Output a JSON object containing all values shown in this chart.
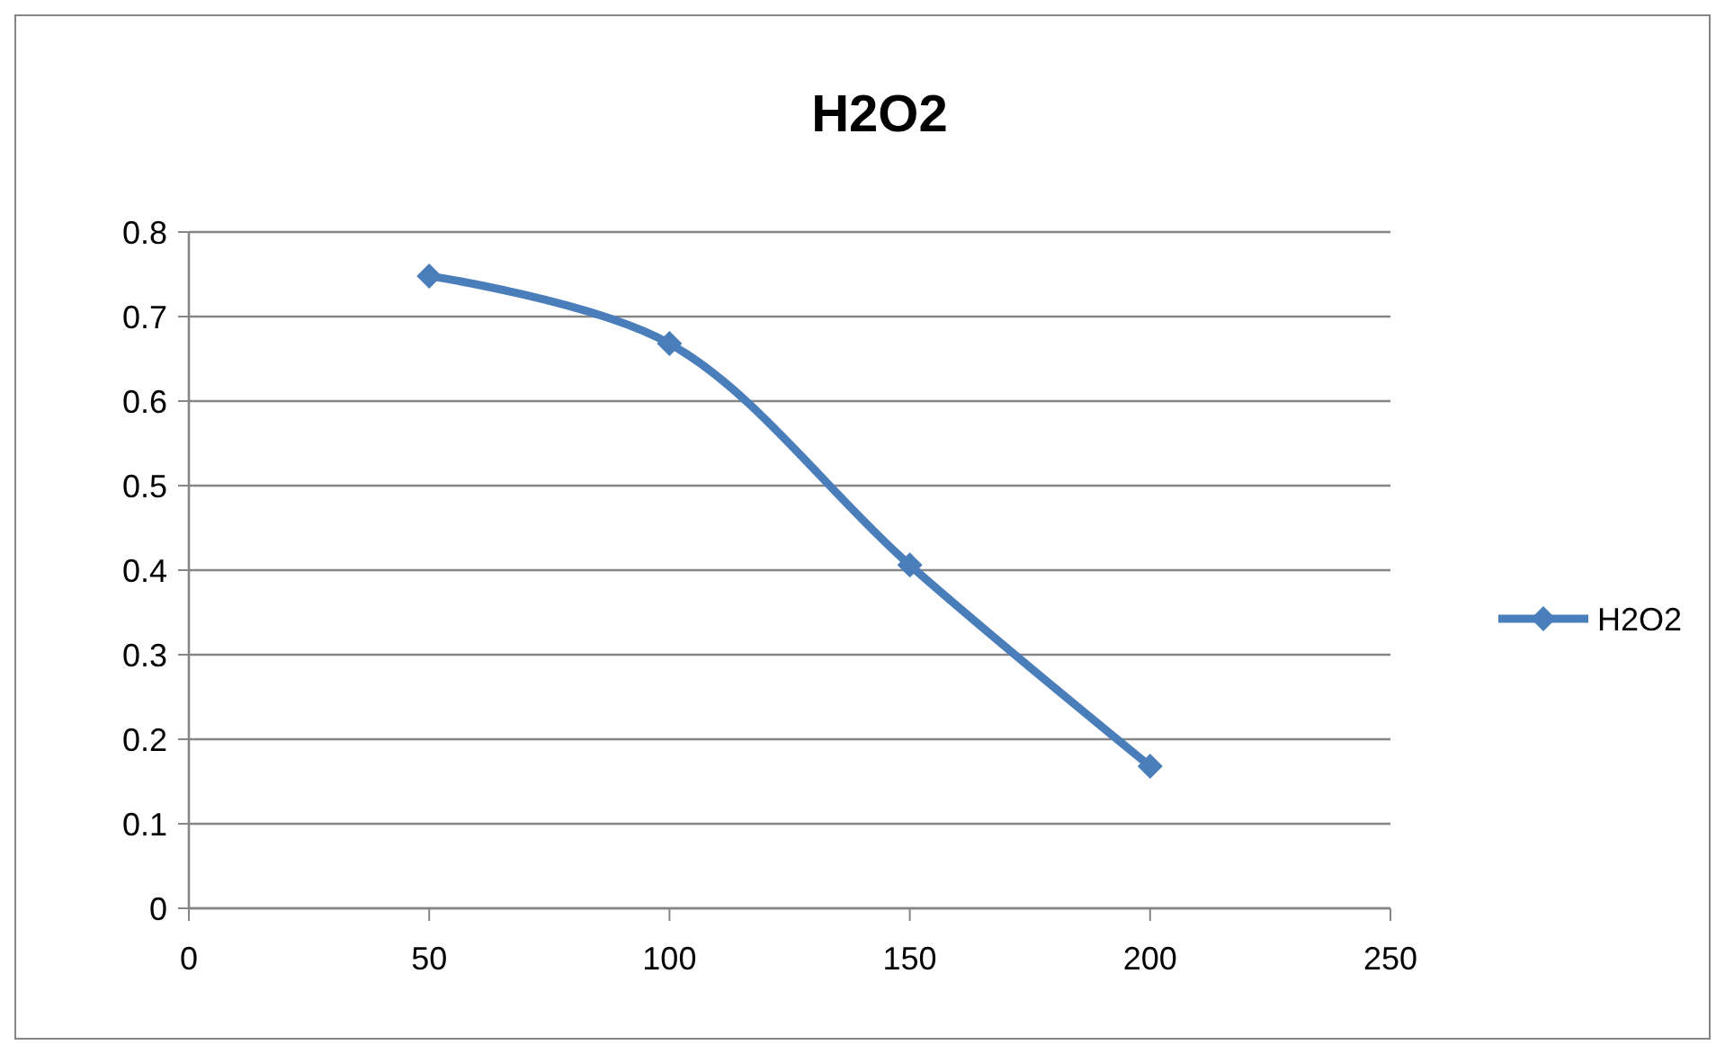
{
  "chart_data": {
    "type": "line",
    "title": "H2O2",
    "x": [
      50,
      100,
      150,
      200
    ],
    "series": [
      {
        "name": "H2O2",
        "color": "#4a7ebb",
        "values": [
          0.748,
          0.668,
          0.406,
          0.168
        ]
      }
    ],
    "xlim": [
      0,
      250
    ],
    "xticks": [
      0,
      50,
      100,
      150,
      200,
      250
    ],
    "ylim": [
      0,
      0.8
    ],
    "yticks": [
      0,
      0.1,
      0.2,
      0.3,
      0.4,
      0.5,
      0.6,
      0.7,
      0.8
    ],
    "grid": "y",
    "legend": "right",
    "marker": "diamond",
    "line_style": "solid"
  }
}
